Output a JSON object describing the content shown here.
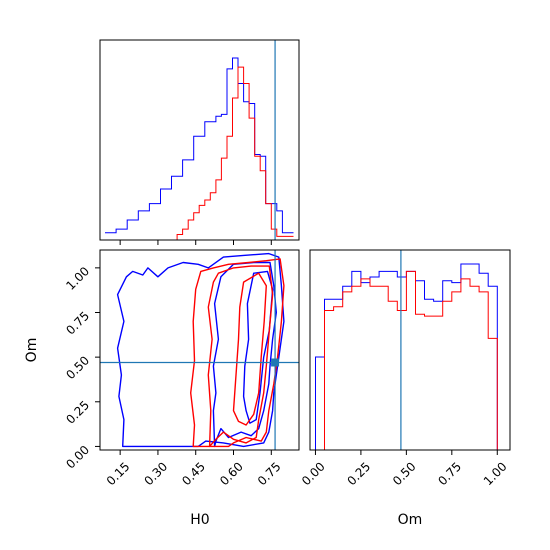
{
  "chart_data": [
    {
      "type": "histogram",
      "panel": "H0 marginal (top-left)",
      "bins": [
        0.09,
        0.112,
        0.134,
        0.156,
        0.178,
        0.2,
        0.222,
        0.244,
        0.266,
        0.288,
        0.31,
        0.332,
        0.354,
        0.376,
        0.398,
        0.42,
        0.442,
        0.464,
        0.486,
        0.508,
        0.53,
        0.552,
        0.574,
        0.596,
        0.618,
        0.64,
        0.662,
        0.684,
        0.706,
        0.728,
        0.75,
        0.772,
        0.794,
        0.816,
        0.838
      ],
      "series": [
        {
          "color": "#0000ff",
          "values": [
            0.04,
            0.04,
            0.06,
            0.06,
            0.11,
            0.11,
            0.16,
            0.16,
            0.2,
            0.2,
            0.28,
            0.28,
            0.35,
            0.35,
            0.44,
            0.44,
            0.57,
            0.57,
            0.65,
            0.65,
            0.68,
            0.69,
            0.94,
            1.0,
            0.86,
            0.76,
            0.75,
            0.47,
            0.46,
            0.2,
            0.2,
            0.16,
            0.04,
            0.04
          ]
        },
        {
          "color": "#ff0000",
          "values": [
            0.0,
            0.0,
            0.0,
            0.0,
            0.0,
            0.0,
            0.0,
            0.0,
            0.0,
            0.0,
            0.0,
            0.0,
            0.0,
            0.03,
            0.06,
            0.11,
            0.15,
            0.19,
            0.22,
            0.26,
            0.33,
            0.45,
            0.57,
            0.78,
            0.95,
            0.86,
            0.67,
            0.46,
            0.38,
            0.2,
            0.06,
            0.02,
            0.02,
            0.02
          ]
        }
      ],
      "truth_marker": 0.765,
      "xlim": [
        0.07,
        0.86
      ]
    },
    {
      "type": "contour",
      "panel": "H0 vs Om joint (bottom-left)",
      "xlabel": "H0",
      "ylabel": "Om",
      "xticks": [
        "0.15",
        "0.30",
        "0.45",
        "0.60",
        "0.75"
      ],
      "yticks": [
        "0.00",
        "0.25",
        "0.50",
        "0.75",
        "1.00"
      ],
      "xlim": [
        0.07,
        0.86
      ],
      "ylim": [
        -0.02,
        1.1
      ],
      "truth_marker": {
        "x": 0.765,
        "y": 0.47
      },
      "series": [
        {
          "color": "#0000ff",
          "contours": [
            [
              [
                0.16,
                0.0
              ],
              [
                0.165,
                0.15
              ],
              [
                0.145,
                0.28
              ],
              [
                0.155,
                0.4
              ],
              [
                0.14,
                0.55
              ],
              [
                0.165,
                0.7
              ],
              [
                0.14,
                0.85
              ],
              [
                0.175,
                0.95
              ],
              [
                0.2,
                0.98
              ],
              [
                0.24,
                0.96
              ],
              [
                0.26,
                1.0
              ],
              [
                0.3,
                0.95
              ],
              [
                0.34,
                1.0
              ],
              [
                0.4,
                1.03
              ],
              [
                0.46,
                1.02
              ],
              [
                0.5,
                1.0
              ],
              [
                0.56,
                1.06
              ],
              [
                0.64,
                1.07
              ],
              [
                0.74,
                1.08
              ],
              [
                0.78,
                1.06
              ],
              [
                0.79,
                0.9
              ],
              [
                0.8,
                0.7
              ],
              [
                0.785,
                0.55
              ],
              [
                0.77,
                0.4
              ],
              [
                0.76,
                0.3
              ],
              [
                0.755,
                0.2
              ],
              [
                0.74,
                0.08
              ],
              [
                0.72,
                0.02
              ],
              [
                0.64,
                0.0
              ],
              [
                0.56,
                0.02
              ],
              [
                0.49,
                0.03
              ],
              [
                0.46,
                0.0
              ]
            ],
            [
              [
                0.525,
                0.0
              ],
              [
                0.52,
                0.2
              ],
              [
                0.53,
                0.3
              ],
              [
                0.52,
                0.45
              ],
              [
                0.54,
                0.6
              ],
              [
                0.525,
                0.8
              ],
              [
                0.55,
                0.95
              ],
              [
                0.6,
                1.02
              ],
              [
                0.68,
                1.03
              ],
              [
                0.745,
                1.03
              ],
              [
                0.76,
                0.9
              ],
              [
                0.77,
                0.75
              ],
              [
                0.755,
                0.6
              ],
              [
                0.745,
                0.45
              ],
              [
                0.74,
                0.35
              ],
              [
                0.72,
                0.2
              ],
              [
                0.7,
                0.1
              ],
              [
                0.67,
                0.06
              ],
              [
                0.63,
                0.08
              ],
              [
                0.58,
                0.05
              ],
              [
                0.55,
                0.1
              ],
              [
                0.53,
                0.03
              ]
            ],
            [
              [
                0.64,
                0.28
              ],
              [
                0.645,
                0.45
              ],
              [
                0.66,
                0.6
              ],
              [
                0.655,
                0.8
              ],
              [
                0.68,
                0.97
              ],
              [
                0.735,
                0.98
              ],
              [
                0.755,
                0.88
              ],
              [
                0.742,
                0.65
              ],
              [
                0.72,
                0.5
              ],
              [
                0.705,
                0.3
              ],
              [
                0.69,
                0.15
              ],
              [
                0.665,
                0.13
              ],
              [
                0.65,
                0.2
              ]
            ]
          ]
        },
        {
          "color": "#ff0000",
          "contours": [
            [
              [
                0.44,
                0.0
              ],
              [
                0.445,
                0.12
              ],
              [
                0.43,
                0.3
              ],
              [
                0.445,
                0.48
              ],
              [
                0.44,
                0.7
              ],
              [
                0.45,
                0.88
              ],
              [
                0.47,
                0.98
              ],
              [
                0.52,
                1.0
              ],
              [
                0.58,
                1.02
              ],
              [
                0.66,
                1.03
              ],
              [
                0.73,
                1.04
              ],
              [
                0.785,
                1.05
              ],
              [
                0.8,
                0.9
              ],
              [
                0.79,
                0.7
              ],
              [
                0.775,
                0.5
              ],
              [
                0.76,
                0.35
              ],
              [
                0.74,
                0.2
              ],
              [
                0.73,
                0.08
              ],
              [
                0.71,
                0.03
              ],
              [
                0.65,
                0.05
              ],
              [
                0.6,
                0.02
              ],
              [
                0.58,
                0.0
              ]
            ],
            [
              [
                0.505,
                0.0
              ],
              [
                0.51,
                0.2
              ],
              [
                0.5,
                0.4
              ],
              [
                0.515,
                0.6
              ],
              [
                0.5,
                0.78
              ],
              [
                0.52,
                0.92
              ],
              [
                0.54,
                0.97
              ],
              [
                0.6,
                1.0
              ],
              [
                0.67,
                1.01
              ],
              [
                0.742,
                1.01
              ],
              [
                0.755,
                0.85
              ],
              [
                0.742,
                0.65
              ],
              [
                0.73,
                0.45
              ],
              [
                0.72,
                0.3
              ],
              [
                0.7,
                0.15
              ],
              [
                0.69,
                0.05
              ],
              [
                0.65,
                0.02
              ],
              [
                0.6,
                0.04
              ],
              [
                0.56,
                0.08
              ],
              [
                0.53,
                0.04
              ]
            ],
            [
              [
                0.6,
                0.2
              ],
              [
                0.61,
                0.4
              ],
              [
                0.62,
                0.6
              ],
              [
                0.625,
                0.78
              ],
              [
                0.64,
                0.92
              ],
              [
                0.7,
                0.97
              ],
              [
                0.73,
                0.9
              ],
              [
                0.722,
                0.7
              ],
              [
                0.71,
                0.5
              ],
              [
                0.7,
                0.3
              ],
              [
                0.68,
                0.18
              ],
              [
                0.65,
                0.12
              ],
              [
                0.62,
                0.14
              ]
            ]
          ]
        }
      ]
    },
    {
      "type": "histogram",
      "panel": "Om marginal (bottom-right)",
      "xlabel": "Om",
      "xticks": [
        "0.00",
        "0.25",
        "0.50",
        "0.75",
        "1.00"
      ],
      "xlim": [
        -0.03,
        1.07
      ],
      "bins": [
        0.0,
        0.05,
        0.1,
        0.15,
        0.2,
        0.25,
        0.3,
        0.35,
        0.4,
        0.45,
        0.5,
        0.55,
        0.6,
        0.65,
        0.7,
        0.75,
        0.8,
        0.85,
        0.9,
        0.95,
        1.0
      ],
      "series": [
        {
          "color": "#0000ff",
          "values": [
            0.5,
            0.81,
            0.81,
            0.88,
            0.96,
            0.9,
            0.93,
            0.96,
            0.96,
            0.93,
            0.96,
            0.91,
            0.81,
            0.8,
            0.91,
            0.9,
            1.0,
            1.0,
            0.95,
            0.88
          ]
        },
        {
          "color": "#ff0000",
          "values": [
            0.0,
            0.75,
            0.77,
            0.85,
            0.88,
            0.92,
            0.88,
            0.88,
            0.8,
            0.75,
            0.96,
            0.73,
            0.72,
            0.72,
            0.8,
            0.85,
            0.92,
            0.88,
            0.85,
            0.6
          ]
        }
      ],
      "truth_marker": 0.47
    }
  ]
}
